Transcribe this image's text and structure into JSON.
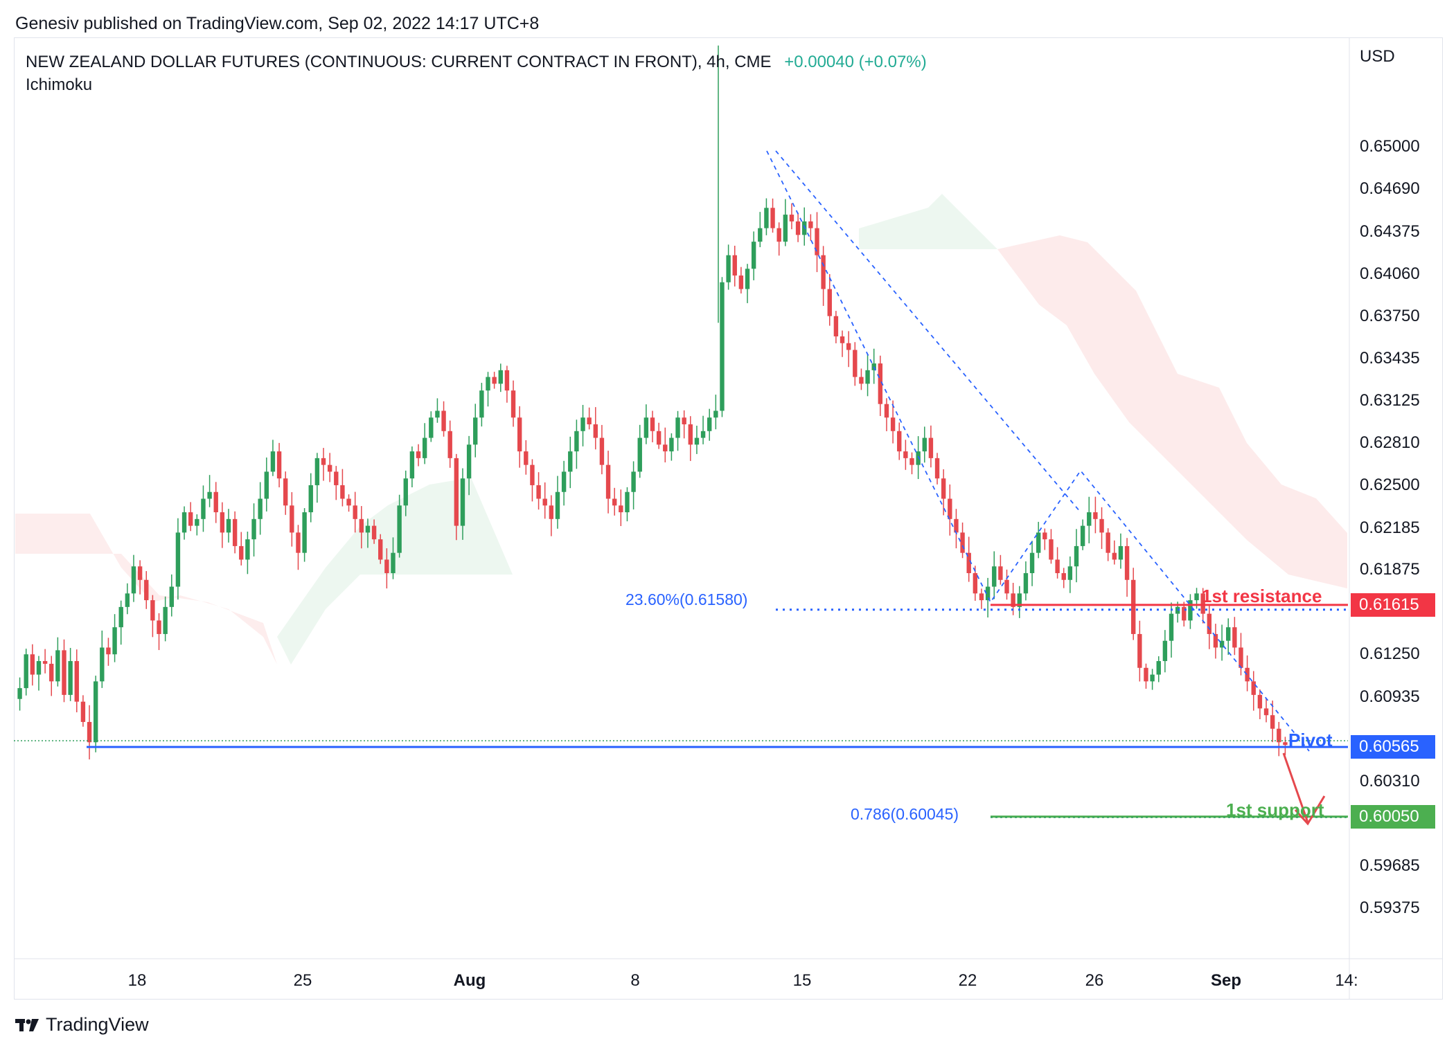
{
  "header": {
    "published": "Genesiv published on TradingView.com, Sep 02, 2022 14:17 UTC+8"
  },
  "chart_data": {
    "type": "candlestick",
    "title": "NEW ZEALAND DOLLAR FUTURES (CONTINUOUS: CURRENT CONTRACT IN FRONT), 4h, CME",
    "change": "+0.00040 (+0.07%)",
    "indicator": "Ichimoku",
    "y_unit": "USD",
    "ylim": [
      0.59,
      0.658
    ],
    "y_ticks": [
      "0.65000",
      "0.64690",
      "0.64375",
      "0.64060",
      "0.63750",
      "0.63435",
      "0.63125",
      "0.62810",
      "0.62500",
      "0.62185",
      "0.61875",
      "0.61250",
      "0.60935",
      "0.60310",
      "0.59685",
      "0.59375"
    ],
    "x_ticks": [
      {
        "label": "18",
        "bold": false
      },
      {
        "label": "25",
        "bold": false
      },
      {
        "label": "Aug",
        "bold": true
      },
      {
        "label": "8",
        "bold": false
      },
      {
        "label": "15",
        "bold": false
      },
      {
        "label": "22",
        "bold": false
      },
      {
        "label": "26",
        "bold": false
      },
      {
        "label": "Sep",
        "bold": true
      },
      {
        "label": "14:",
        "bold": false
      }
    ],
    "price_badges": [
      {
        "value": "0.61615",
        "color": "#f23645"
      },
      {
        "value": "0.60565",
        "color": "#2962ff"
      },
      {
        "value": "0.60050",
        "color": "#4caf50"
      }
    ],
    "levels": [
      {
        "label": "1st resistance",
        "value": 0.61615,
        "color": "#f23645"
      },
      {
        "label": "Pivot",
        "value": 0.60565,
        "color": "#2962ff"
      },
      {
        "label": "1st support",
        "value": 0.6005,
        "color": "#4caf50"
      }
    ],
    "fib_labels": [
      {
        "label": "23.60%(0.61580)",
        "value": 0.6158
      },
      {
        "label": "0.786(0.60045)",
        "value": 0.60045
      }
    ],
    "close_path": [
      0.61,
      0.6125,
      0.611,
      0.612,
      0.6118,
      0.6105,
      0.6128,
      0.6095,
      0.612,
      0.609,
      0.6075,
      0.606,
      0.6105,
      0.613,
      0.6125,
      0.6145,
      0.616,
      0.617,
      0.619,
      0.618,
      0.6165,
      0.615,
      0.614,
      0.616,
      0.6175,
      0.6215,
      0.623,
      0.622,
      0.6225,
      0.624,
      0.6245,
      0.623,
      0.6215,
      0.6225,
      0.6205,
      0.6195,
      0.621,
      0.6225,
      0.624,
      0.626,
      0.6275,
      0.6255,
      0.6235,
      0.6215,
      0.62,
      0.623,
      0.625,
      0.627,
      0.6265,
      0.626,
      0.625,
      0.624,
      0.6235,
      0.6225,
      0.6215,
      0.622,
      0.621,
      0.6195,
      0.6185,
      0.62,
      0.6235,
      0.6255,
      0.6275,
      0.627,
      0.6285,
      0.63,
      0.6305,
      0.629,
      0.627,
      0.622,
      0.6255,
      0.628,
      0.63,
      0.632,
      0.633,
      0.6325,
      0.6335,
      0.632,
      0.63,
      0.6275,
      0.6265,
      0.625,
      0.624,
      0.6235,
      0.6225,
      0.6245,
      0.626,
      0.6275,
      0.629,
      0.63,
      0.6295,
      0.6285,
      0.6265,
      0.624,
      0.6235,
      0.623,
      0.6245,
      0.626,
      0.6285,
      0.63,
      0.629,
      0.628,
      0.6275,
      0.6285,
      0.63,
      0.6295,
      0.628,
      0.6285,
      0.629,
      0.63,
      0.6305,
      0.64,
      0.642,
      0.6405,
      0.6395,
      0.641,
      0.643,
      0.644,
      0.6455,
      0.644,
      0.643,
      0.645,
      0.6445,
      0.6435,
      0.6445,
      0.644,
      0.642,
      0.6395,
      0.6375,
      0.636,
      0.6355,
      0.635,
      0.633,
      0.6325,
      0.6335,
      0.634,
      0.631,
      0.63,
      0.629,
      0.6275,
      0.627,
      0.6265,
      0.6275,
      0.6285,
      0.627,
      0.6255,
      0.624,
      0.6225,
      0.6215,
      0.62,
      0.6185,
      0.617,
      0.6165,
      0.6175,
      0.619,
      0.618,
      0.617,
      0.616,
      0.617,
      0.6185,
      0.62,
      0.6215,
      0.621,
      0.6195,
      0.6185,
      0.618,
      0.619,
      0.6205,
      0.622,
      0.623,
      0.6225,
      0.6215,
      0.62,
      0.6195,
      0.6205,
      0.618,
      0.614,
      0.6115,
      0.6105,
      0.611,
      0.612,
      0.6135,
      0.6155,
      0.616,
      0.615,
      0.6165,
      0.617,
      0.6155,
      0.614,
      0.613,
      0.6135,
      0.6145,
      0.613,
      0.6115,
      0.6105,
      0.6095,
      0.6085,
      0.608,
      0.607,
      0.606,
      0.6058
    ]
  }
}
